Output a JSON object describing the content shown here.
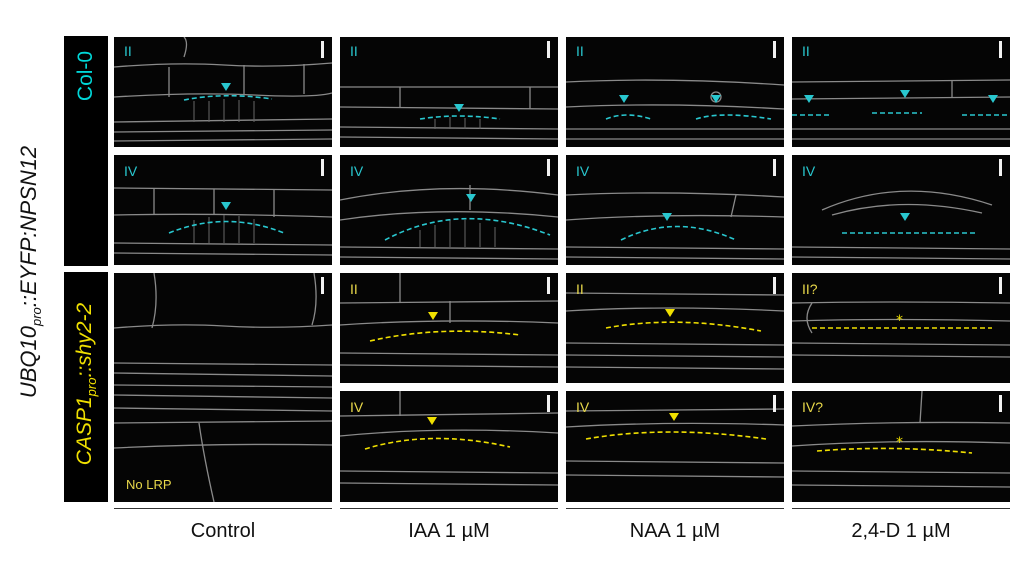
{
  "figure": {
    "row_label": {
      "prefix": "UBQ10",
      "sub": "pro",
      "suffix": "::EYFP:NPSN12"
    },
    "genotypes": [
      {
        "label": "Col-0",
        "color": "#00d7d8"
      },
      {
        "label_prefix": "CASP1",
        "label_sub": "pro",
        "label_suffix": "::shy2-2",
        "color": "#f0e000"
      }
    ],
    "columns": [
      "Control",
      "IAA 1 µM",
      "NAA 1 µM",
      "2,4-D 1 µM"
    ],
    "panel_labels": {
      "col0_stage2": [
        "II",
        "II",
        "II",
        "II"
      ],
      "col0_stage4": [
        "IV",
        "IV",
        "IV",
        "IV"
      ],
      "shy_stage2": [
        "II",
        "II",
        "II?"
      ],
      "shy_stage4": [
        "IV",
        "IV",
        "IV?"
      ]
    },
    "no_lrp_label": "No LRP",
    "colors": {
      "cyan": "#29c7cf",
      "yellow": "#e8d84a",
      "panel_bg": "#050505"
    }
  }
}
